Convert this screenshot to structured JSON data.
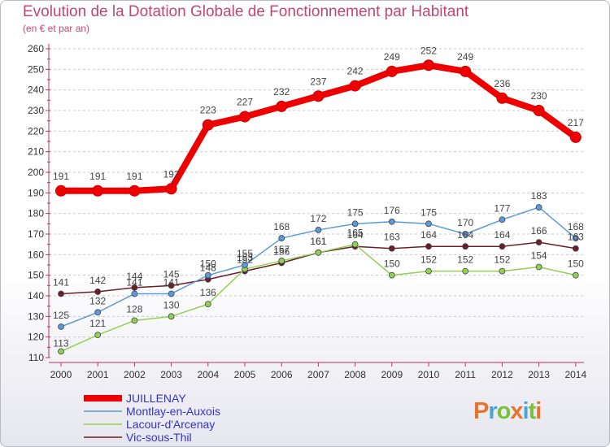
{
  "title": "Evolution de la Dotation Globale de Fonctionnement par Habitant",
  "subtitle": "(en € et par an)",
  "logo": {
    "letters": [
      "P",
      "r",
      "o",
      "x",
      "i",
      "t",
      "i"
    ],
    "colors": [
      "#e8742b",
      "#49a4d8",
      "#7cbf3d",
      "#e8742b",
      "#49a4d8",
      "#7cbf3d",
      "#e8742b"
    ]
  },
  "chart_data": {
    "type": "line",
    "title": "Evolution de la Dotation Globale de Fonctionnement par Habitant",
    "xlabel": "",
    "ylabel": "(en € et par an)",
    "ylim": [
      110,
      260
    ],
    "yticks": [
      "110",
      "120",
      "130",
      "140",
      "150",
      "160",
      "170",
      "180",
      "190",
      "200",
      "210",
      "220",
      "230",
      "240",
      "250",
      "260"
    ],
    "categories": [
      "2000",
      "2001",
      "2002",
      "2003",
      "2004",
      "2005",
      "2006",
      "2007",
      "2008",
      "2009",
      "2010",
      "2011",
      "2012",
      "2013",
      "2014"
    ],
    "series": [
      {
        "name": "JUILLENAY",
        "color": "#ee0000",
        "values": [
          191,
          191,
          191,
          192,
          223,
          227,
          232,
          237,
          242,
          249,
          252,
          249,
          236,
          230,
          217
        ],
        "labels": [
          "191",
          "191",
          "191",
          "192",
          "223",
          "227",
          "232",
          "237",
          "242",
          "249",
          "252",
          "249",
          "236",
          "230",
          "217"
        ]
      },
      {
        "name": "Montlay-en-Auxois",
        "color": "#5b9bd5",
        "values": [
          125,
          132,
          141,
          141,
          150,
          155,
          168,
          172,
          175,
          176,
          175,
          170,
          177,
          183,
          168
        ],
        "labels": [
          "125",
          "132",
          "141",
          "141",
          "150",
          "155",
          "168",
          "172",
          "175",
          "176",
          "175",
          "170",
          "177",
          "183",
          "168"
        ]
      },
      {
        "name": "Lacour-d'Arcenay",
        "color": "#92d050",
        "values": [
          113,
          121,
          128,
          130,
          136,
          153,
          157,
          161,
          165,
          150,
          152,
          152,
          152,
          154,
          150
        ],
        "labels": [
          "113",
          "121",
          "128",
          "130",
          "136",
          "153",
          "157",
          "161",
          "165",
          "150",
          "152",
          "152",
          "152",
          "154",
          "150"
        ]
      },
      {
        "name": "Vic-sous-Thil",
        "color": "#6b1f24",
        "values": [
          141,
          142,
          144,
          145,
          148,
          152,
          156,
          161,
          164,
          163,
          164,
          164,
          164,
          166,
          163
        ],
        "labels": [
          "141",
          "142",
          "144",
          "145",
          "148",
          "152",
          "156",
          "161",
          "164",
          "163",
          "164",
          "164",
          "164",
          "166",
          "163"
        ]
      }
    ]
  }
}
